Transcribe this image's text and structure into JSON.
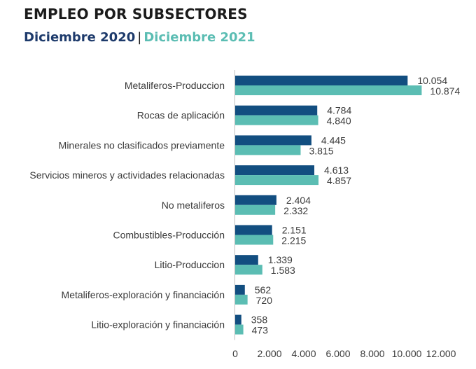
{
  "header": {
    "title": "EMPLEO POR SUBSECTORES",
    "subtitle_a": "Diciembre 2020",
    "separator": "|",
    "subtitle_b": "Diciembre 2021"
  },
  "chart_data": {
    "type": "bar",
    "orientation": "horizontal",
    "categories": [
      "Metaliferos-Produccion",
      "Rocas de aplicación",
      "Minerales no clasificados previamente",
      "Servicios mineros y actividades relacionadas",
      "No metaliferos",
      "Combustibles-Producción",
      "Litio-Produccion",
      "Metaliferos-exploración y financiación",
      "Litio-exploración y financiación"
    ],
    "series": [
      {
        "name": "Diciembre 2020",
        "color": "#124e80",
        "values": [
          10054,
          4784,
          4445,
          4613,
          2404,
          2151,
          1339,
          562,
          358
        ],
        "labels": [
          "10.054",
          "4.784",
          "4.445",
          "4.613",
          "2.404",
          "2.151",
          "1.339",
          "562",
          "358"
        ]
      },
      {
        "name": "Diciembre 2021",
        "color": "#5bbdb3",
        "values": [
          10874,
          4840,
          3815,
          4857,
          2332,
          2215,
          1583,
          720,
          473
        ],
        "labels": [
          "10.874",
          "4.840",
          "3.815",
          "4.857",
          "2.332",
          "2.215",
          "1.583",
          "720",
          "473"
        ]
      }
    ],
    "xlim": [
      0,
      12000
    ],
    "xticks": [
      0,
      2000,
      4000,
      6000,
      8000,
      10000,
      12000
    ],
    "xtick_labels": [
      "0",
      "2.000",
      "4.000",
      "6.000",
      "8.000",
      "10.000",
      "12.000"
    ],
    "grid": false,
    "legend": "subtitle"
  }
}
